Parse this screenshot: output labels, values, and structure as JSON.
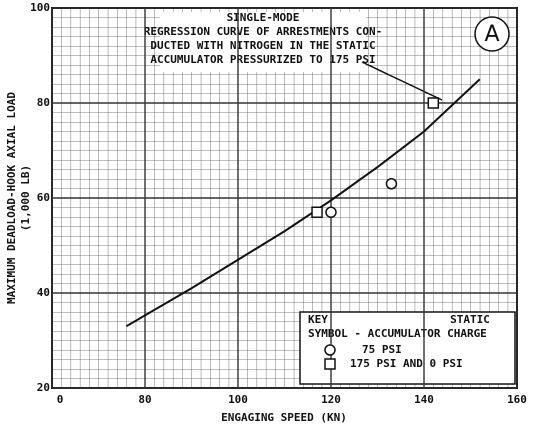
{
  "chart_data": {
    "type": "scatter",
    "xlabel": "ENGAGING SPEED (KN)",
    "ylabel": [
      "MAXIMUM DEADLOAD-HOOK AXIAL LOAD",
      "(1,000 LB)"
    ],
    "xlim": [
      60,
      160
    ],
    "ylim": [
      20,
      100
    ],
    "xticks": [
      {
        "value": 60,
        "label": "0"
      },
      80,
      100,
      120,
      140,
      160
    ],
    "yticks": [
      20,
      40,
      60,
      80,
      100
    ],
    "grid": true,
    "annotation": [
      "SINGLE-MODE",
      "REGRESSION CURVE OF ARRESTMENTS CON-",
      "DUCTED WITH NITROGEN IN THE STATIC",
      "ACCUMULATOR PRESSURIZED TO 175 PSI"
    ],
    "panel_label": "A",
    "curve": {
      "x": [
        76,
        90,
        100,
        110,
        120,
        130,
        140,
        152
      ],
      "y": [
        33,
        41,
        47,
        53,
        59.5,
        66.5,
        74,
        85
      ]
    },
    "legend_title": [
      "KEY",
      "STATIC",
      "SYMBOL - ACCUMULATOR CHARGE"
    ],
    "series": [
      {
        "name": "75 PSI",
        "marker": "circle",
        "color": "#111",
        "x": [
          120,
          133
        ],
        "y": [
          57,
          63
        ]
      },
      {
        "name": "175 PSI AND 0 PSI",
        "marker": "square",
        "color": "#111",
        "x": [
          117,
          142
        ],
        "y": [
          57,
          80
        ]
      }
    ]
  }
}
